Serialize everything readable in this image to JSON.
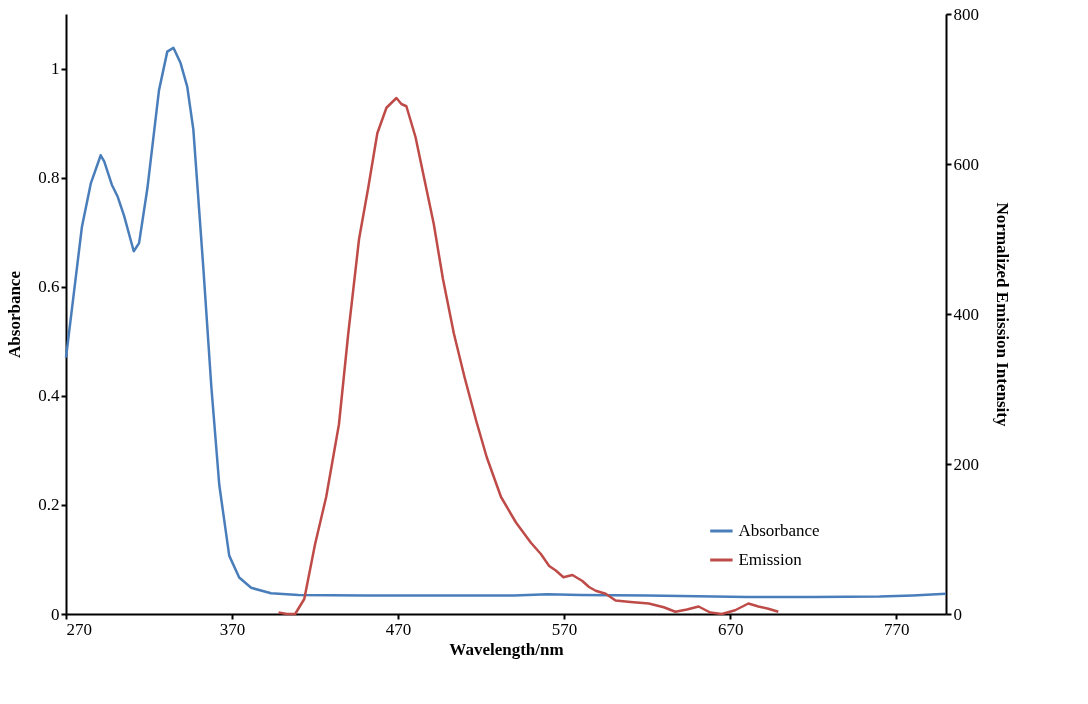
{
  "chart_data": {
    "type": "line",
    "xlabel": "Wavelength/nm",
    "ylabel": "Absorbance",
    "y2label": "Normalized Emission Intensity",
    "xlim": [
      270,
      800
    ],
    "xticks": [
      270,
      370,
      470,
      570,
      670,
      770
    ],
    "ylim": [
      0,
      1.1
    ],
    "yticks": [
      0,
      0.2,
      0.4,
      0.6,
      0.8,
      1
    ],
    "y2lim": [
      0,
      800
    ],
    "y2ticks": [
      0,
      200,
      400,
      600,
      800
    ],
    "grid": false,
    "legend": "bottom right",
    "marker": "none",
    "line_style": "solid",
    "series": [
      {
        "name": "Absorbance",
        "color": "#4a7ebb",
        "x": [
          270,
          279.6,
          285,
          290.9,
          293,
          297.6,
          301,
          305,
          310.8,
          314,
          319,
          326,
          331,
          334.7,
          339,
          343,
          346.7,
          352.7,
          357.5,
          362.3,
          368.3,
          374.3,
          381.5,
          393.5,
          410,
          450,
          500,
          540,
          560,
          580,
          620,
          680,
          720,
          760,
          780,
          800
        ],
        "values": [
          0.47,
          0.71,
          0.79,
          0.841,
          0.83,
          0.787,
          0.766,
          0.73,
          0.665,
          0.68,
          0.78,
          0.96,
          1.031,
          1.038,
          1.01,
          0.967,
          0.888,
          0.635,
          0.418,
          0.237,
          0.107,
          0.067,
          0.048,
          0.038,
          0.035,
          0.034,
          0.034,
          0.034,
          0.036,
          0.035,
          0.034,
          0.031,
          0.031,
          0.032,
          0.034,
          0.037
        ]
      },
      {
        "name": "Emission",
        "color": "#be4b48",
        "axis": "y2",
        "x": [
          398,
          403,
          408,
          413.5,
          420,
          426.7,
          434.4,
          440,
          446.5,
          452,
          457.5,
          463,
          469,
          472,
          475,
          480.5,
          486,
          491.5,
          497,
          503.6,
          510,
          517,
          523.4,
          532,
          541,
          550,
          556,
          561,
          565,
          569.6,
          575,
          581,
          585,
          589,
          595,
          601,
          610,
          621,
          630,
          637,
          644,
          651,
          658,
          665,
          673,
          681,
          687,
          693,
          699
        ],
        "values": [
          2,
          0,
          0,
          20,
          93,
          156,
          253,
          374,
          500,
          568,
          641,
          675,
          688,
          680,
          677,
          636,
          578,
          520,
          447,
          374,
          316,
          258,
          209,
          156,
          122,
          95,
          80,
          64,
          58,
          49,
          52,
          44,
          36,
          31,
          27,
          18,
          16,
          14,
          9,
          3,
          6,
          10,
          2,
          0,
          5,
          14,
          10,
          7,
          3
        ]
      }
    ]
  }
}
